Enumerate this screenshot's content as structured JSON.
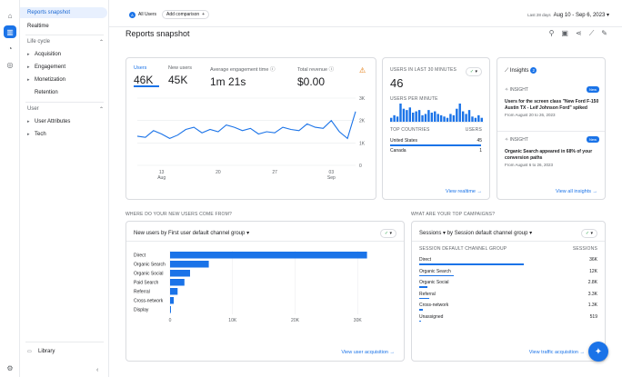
{
  "rail": {
    "icons": [
      "home-icon",
      "reports-icon",
      "explore-icon",
      "advertising-icon",
      "settings-icon"
    ]
  },
  "nav": {
    "reports_snapshot": "Reports snapshot",
    "realtime": "Realtime",
    "lifecycle": "Life cycle",
    "acquisition": "Acquisition",
    "engagement": "Engagement",
    "monetization": "Monetization",
    "retention": "Retention",
    "user": "User",
    "user_attributes": "User Attributes",
    "tech": "Tech",
    "library": "Library"
  },
  "topbar": {
    "all_users": "All Users",
    "add_comparison": "Add comparison",
    "date_label": "Last 28 days",
    "date_range": "Aug 10 - Sep 6, 2023"
  },
  "page_title": "Reports snapshot",
  "metrics": [
    {
      "label": "Users",
      "value": "46K"
    },
    {
      "label": "New users",
      "value": "45K"
    },
    {
      "label": "Average engagement time",
      "value": "1m 21s"
    },
    {
      "label": "Total revenue",
      "value": "$0.00"
    }
  ],
  "main_chart": {
    "y_ticks": [
      "3K",
      "2K",
      "1K",
      "0"
    ],
    "x_ticks": [
      {
        "d": "13",
        "m": "Aug"
      },
      {
        "d": "20",
        "m": ""
      },
      {
        "d": "27",
        "m": ""
      },
      {
        "d": "03",
        "m": "Sep"
      }
    ]
  },
  "chart_data": [
    {
      "type": "line",
      "series": [
        {
          "values": [
            1300,
            1250,
            1550,
            1400,
            1200,
            1350,
            1600,
            1700,
            1450,
            1600,
            1500,
            1800,
            1700,
            1550,
            1650,
            1400,
            1500,
            1450,
            1700,
            1600,
            1550,
            1850,
            1700,
            1650,
            2000,
            1500,
            1200,
            2400
          ]
        }
      ],
      "ylim": [
        0,
        3000
      ]
    },
    {
      "type": "bar",
      "title": "USERS PER MINUTE",
      "values": [
        3,
        5,
        4,
        14,
        10,
        9,
        11,
        7,
        8,
        9,
        5,
        6,
        9,
        7,
        8,
        6,
        5,
        4,
        3,
        6,
        5,
        10,
        14,
        8,
        6,
        9,
        4,
        3,
        5,
        3
      ]
    },
    {
      "type": "bar",
      "orientation": "horizontal",
      "title": "New users by First user default channel group",
      "categories": [
        "Direct",
        "Organic Search",
        "Organic Social",
        "Paid Search",
        "Referral",
        "Cross-network",
        "Display"
      ],
      "values": [
        31500,
        6200,
        3200,
        2300,
        1200,
        600,
        150
      ],
      "x_ticks": [
        "0",
        "10K",
        "20K",
        "30K"
      ],
      "xlim": [
        0,
        32000
      ]
    },
    {
      "type": "table",
      "title": "Sessions by Session default channel group",
      "categories": [
        "Direct",
        "Organic Search",
        "Organic Social",
        "Referral",
        "Cross-network",
        "Unassigned"
      ],
      "values": [
        "36K",
        "12K",
        "2.8K",
        "3.3K",
        "1.3K",
        "519"
      ],
      "bar_values": [
        36000,
        12000,
        2800,
        3300,
        1300,
        519
      ]
    }
  ],
  "realtime": {
    "title": "USERS IN LAST 30 MINUTES",
    "value": "46",
    "upm_label": "USERS PER MINUTE",
    "countries_header": "TOP COUNTRIES",
    "users_header": "USERS",
    "countries": [
      {
        "name": "United States",
        "users": "45"
      },
      {
        "name": "Canada",
        "users": "1"
      }
    ],
    "view_link": "View realtime"
  },
  "insights": {
    "title": "Insights",
    "count": "2",
    "tag": "INSIGHT",
    "new": "New",
    "items": [
      {
        "text": "Users for the screen class \"New Ford F-150 Austin TX - Leif Johnson Ford\" spiked",
        "date": "From August 20 to 26, 2023"
      },
      {
        "text": "Organic Search appeared in 68% of your conversion paths",
        "date": "From August 6 to 26, 2023"
      }
    ],
    "view_link": "View all insights"
  },
  "new_users": {
    "section": "WHERE DO YOUR NEW USERS COME FROM?",
    "dropdown": "New users by First user default channel group",
    "view_link": "View user acquisition"
  },
  "campaigns": {
    "section": "WHAT ARE YOUR TOP CAMPAIGNS?",
    "dropdown_a": "Sessions",
    "dropdown_b": "by Session default channel group",
    "col1": "SESSION DEFAULT CHANNEL GROUP",
    "col2": "SESSIONS",
    "view_link": "View traffic acquisition"
  },
  "colors": {
    "accent": "#1a73e8",
    "warning": "#e37400",
    "ok": "#34a853"
  }
}
